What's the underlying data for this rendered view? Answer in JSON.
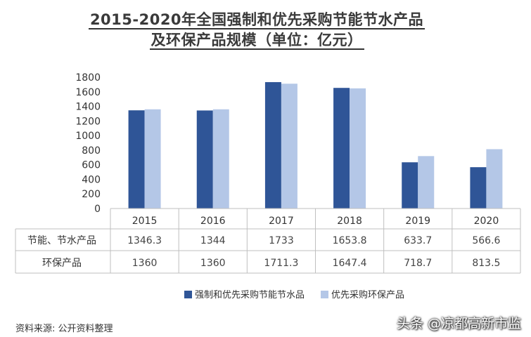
{
  "chart_data": {
    "type": "bar",
    "title_line1": "2015-2020年全国强制和优先采购节能节水产品",
    "title_line2": "及环保产品规模（单位：亿元）",
    "categories": [
      "2015",
      "2016",
      "2017",
      "2018",
      "2019",
      "2020"
    ],
    "series": [
      {
        "name": "强制和优先采购节能节水品",
        "table_label": "节能、节水产品",
        "color": "#2f5597",
        "values": [
          1346.3,
          1344,
          1733,
          1653.8,
          633.7,
          566.6
        ],
        "value_labels": [
          "1346.3",
          "1344",
          "1733",
          "1653.8",
          "633.7",
          "566.6"
        ]
      },
      {
        "name": "优先采购环保产品",
        "table_label": "环保产品",
        "color": "#b4c7e7",
        "values": [
          1360,
          1360,
          1711.3,
          1647.4,
          718.7,
          813.5
        ],
        "value_labels": [
          "1360",
          "1360",
          "1711.3",
          "1647.4",
          "718.7",
          "813.5"
        ]
      }
    ],
    "yticks": [
      "0",
      "200",
      "400",
      "600",
      "800",
      "1000",
      "1200",
      "1400",
      "1600",
      "1800"
    ],
    "ylim": [
      0,
      1800
    ],
    "xlabel": "",
    "ylabel": "",
    "legend_position": "bottom-right",
    "grid": false
  },
  "source": "资料来源:  公开资料整理",
  "watermark": "头条 @凉都高新市监"
}
